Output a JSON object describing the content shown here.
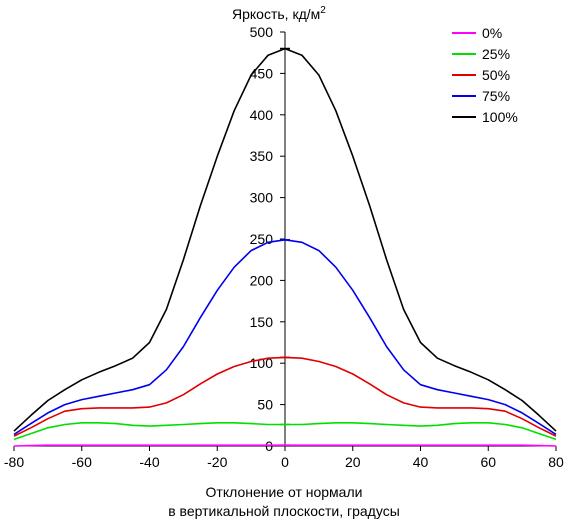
{
  "chart_data": {
    "type": "line",
    "ylabel_main": "Яркость, кд/м",
    "ylabel_sup": "2",
    "xlabel_line1": "Отклонение от нормали",
    "xlabel_line2": "в вертикальной плоскости, градусы",
    "xlim": [
      -80,
      80
    ],
    "ylim": [
      0,
      500
    ],
    "xticks": [
      "-80",
      "-60",
      "-40",
      "-20",
      "0",
      "20",
      "40",
      "60",
      "80"
    ],
    "yticks": [
      "0",
      "50",
      "100",
      "150",
      "200",
      "250",
      "300",
      "350",
      "400",
      "450",
      "500"
    ],
    "legend_position": "top-right",
    "x": [
      -80,
      -75,
      -70,
      -65,
      -60,
      -55,
      -50,
      -45,
      -40,
      -35,
      -30,
      -25,
      -20,
      -15,
      -10,
      -5,
      0,
      5,
      10,
      15,
      20,
      25,
      30,
      35,
      40,
      45,
      50,
      55,
      60,
      65,
      70,
      75,
      80
    ],
    "series": [
      {
        "name": "0%",
        "color": "#ff00ff",
        "values": [
          0,
          0.5,
          1,
          1,
          1,
          1,
          1,
          1,
          1,
          1,
          1,
          1,
          1,
          1,
          1,
          1,
          1,
          1,
          1,
          1,
          1,
          1,
          1,
          1,
          1,
          1,
          1,
          1,
          1,
          1,
          1,
          0.5,
          0
        ]
      },
      {
        "name": "25%",
        "color": "#00e000",
        "values": [
          8,
          15,
          22,
          26,
          28,
          28,
          27,
          25,
          24,
          25,
          26,
          27,
          28,
          28,
          27,
          26,
          26,
          26,
          27,
          28,
          28,
          27,
          26,
          25,
          24,
          25,
          27,
          28,
          28,
          26,
          22,
          15,
          8
        ]
      },
      {
        "name": "50%",
        "color": "#e00000",
        "values": [
          12,
          22,
          33,
          42,
          45,
          46,
          46,
          46,
          47,
          52,
          62,
          75,
          87,
          96,
          102,
          106,
          107,
          106,
          102,
          96,
          87,
          75,
          62,
          52,
          47,
          46,
          46,
          46,
          45,
          42,
          33,
          22,
          12
        ]
      },
      {
        "name": "75%",
        "color": "#0000ee",
        "values": [
          14,
          27,
          40,
          50,
          56,
          60,
          64,
          68,
          74,
          92,
          120,
          155,
          188,
          216,
          236,
          246,
          249,
          246,
          236,
          216,
          188,
          155,
          120,
          92,
          74,
          68,
          64,
          60,
          56,
          50,
          40,
          27,
          14
        ]
      },
      {
        "name": "100%",
        "color": "#000000",
        "values": [
          18,
          37,
          55,
          68,
          80,
          89,
          97,
          106,
          125,
          165,
          225,
          290,
          350,
          405,
          448,
          472,
          480,
          472,
          448,
          405,
          350,
          290,
          225,
          165,
          125,
          106,
          97,
          89,
          80,
          68,
          55,
          37,
          18
        ]
      }
    ]
  }
}
